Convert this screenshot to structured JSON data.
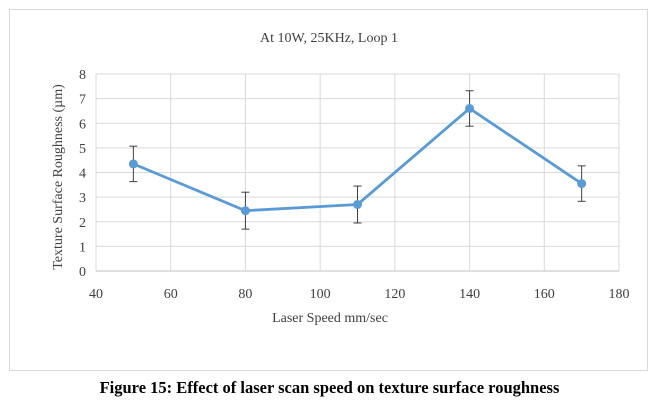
{
  "chart_data": {
    "type": "line",
    "title": "At 10W, 25KHz, Loop 1",
    "xlabel": "Laser Speed mm/sec",
    "ylabel": "Texture Surface Roughness (µm)",
    "xlim": [
      40,
      180
    ],
    "ylim": [
      0,
      8
    ],
    "xticks": [
      40,
      60,
      80,
      100,
      120,
      140,
      160,
      180
    ],
    "yticks": [
      0,
      1,
      2,
      3,
      4,
      5,
      6,
      7,
      8
    ],
    "grid": true,
    "legend": "none",
    "series": [
      {
        "name": "Roughness",
        "x": [
          50,
          80,
          110,
          140,
          170
        ],
        "values": [
          4.35,
          2.45,
          2.7,
          6.6,
          3.55
        ],
        "error": [
          0.72,
          0.75,
          0.75,
          0.72,
          0.72
        ]
      }
    ]
  },
  "colors": {
    "series": "#5b9bd5",
    "grid": "#d9d9d9",
    "axis": "#bfbfbf",
    "errorbar": "#404040",
    "text": "#404040"
  },
  "caption": "Figure 15: Effect of laser scan speed on texture surface roughness"
}
